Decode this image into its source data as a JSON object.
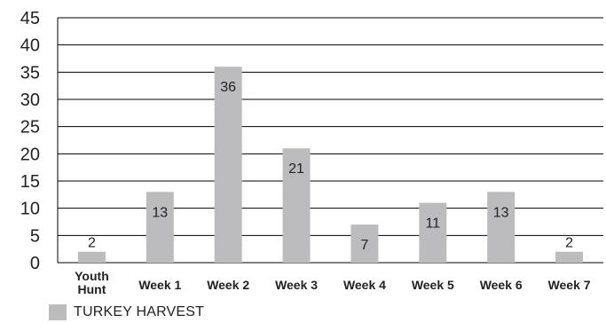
{
  "chart_data": {
    "type": "bar",
    "categories": [
      [
        "Youth",
        "Hunt"
      ],
      [
        "Week 1"
      ],
      [
        "Week 2"
      ],
      [
        "Week 3"
      ],
      [
        "Week 4"
      ],
      [
        "Week 5"
      ],
      [
        "Week 6"
      ],
      [
        "Week 7"
      ]
    ],
    "series": [
      {
        "name": "TURKEY HARVEST",
        "values": [
          2,
          13,
          36,
          21,
          7,
          11,
          13,
          2
        ]
      }
    ],
    "data_labels": [
      "2",
      "13",
      "36",
      "21",
      "7",
      "11",
      "13",
      "2"
    ],
    "ylim": [
      0,
      45
    ],
    "yticks": [
      0,
      5,
      10,
      15,
      20,
      25,
      30,
      35,
      40,
      45
    ],
    "grid": true,
    "legend": "bottom-left",
    "colors": {
      "bar": "#bcbcbe",
      "grid": "#000000"
    },
    "title": "",
    "xlabel": "",
    "ylabel": ""
  }
}
